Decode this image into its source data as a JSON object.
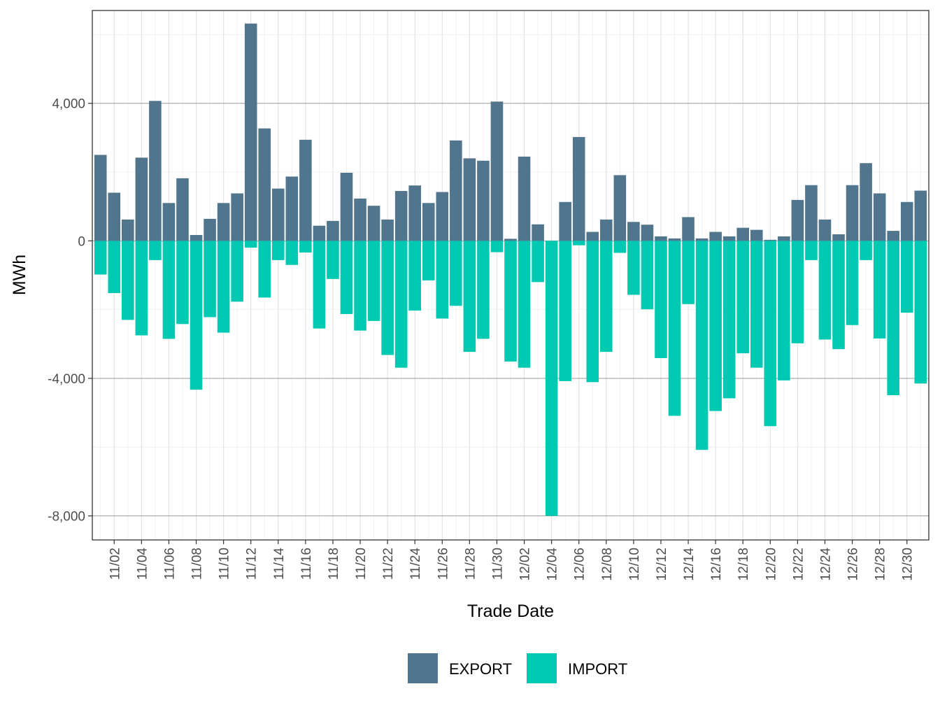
{
  "chart_data": {
    "type": "bar",
    "stacked": true,
    "xlabel": "Trade Date",
    "ylabel": "MWh",
    "ylim": [
      -8700,
      6700
    ],
    "yticks": [
      4000,
      0,
      -4000,
      -8000
    ],
    "ytick_labels": [
      "4,000",
      "0",
      "-4,000",
      "-8,000"
    ],
    "categories": [
      "11/01",
      "11/02",
      "11/03",
      "11/04",
      "11/05",
      "11/06",
      "11/07",
      "11/08",
      "11/09",
      "11/10",
      "11/11",
      "11/12",
      "11/13",
      "11/14",
      "11/15",
      "11/16",
      "11/17",
      "11/18",
      "11/19",
      "11/20",
      "11/21",
      "11/22",
      "11/23",
      "11/24",
      "11/25",
      "11/26",
      "11/27",
      "11/28",
      "11/29",
      "11/30",
      "12/01",
      "12/02",
      "12/03",
      "12/04",
      "12/05",
      "12/06",
      "12/07",
      "12/08",
      "12/09",
      "12/10",
      "12/11",
      "12/12",
      "12/13",
      "12/14",
      "12/15",
      "12/16",
      "12/17",
      "12/18",
      "12/19",
      "12/20",
      "12/21",
      "12/22",
      "12/23",
      "12/24",
      "12/25",
      "12/26",
      "12/27",
      "12/28",
      "12/29",
      "12/30",
      "12/31"
    ],
    "xtick_labels": [
      "11/02",
      "11/04",
      "11/06",
      "11/08",
      "11/10",
      "11/12",
      "11/14",
      "11/16",
      "11/18",
      "11/20",
      "11/22",
      "11/24",
      "11/26",
      "11/28",
      "11/30",
      "12/02",
      "12/04",
      "12/06",
      "12/08",
      "12/10",
      "12/12",
      "12/14",
      "12/16",
      "12/18",
      "12/20",
      "12/22",
      "12/24",
      "12/26",
      "12/28",
      "12/30"
    ],
    "series": [
      {
        "name": "EXPORT",
        "color": "#51758c",
        "values": [
          2500,
          1400,
          620,
          2420,
          4070,
          1100,
          1820,
          170,
          640,
          1100,
          1380,
          6320,
          3270,
          1520,
          1870,
          2940,
          440,
          580,
          1980,
          1230,
          1020,
          620,
          1450,
          1610,
          1100,
          1420,
          2920,
          2400,
          2330,
          4050,
          60,
          2450,
          480,
          0,
          1130,
          3020,
          260,
          620,
          1910,
          550,
          470,
          130,
          70,
          690,
          70,
          260,
          130,
          380,
          320,
          30,
          130,
          1190,
          1620,
          620,
          190,
          1620,
          2260,
          1380,
          290,
          1130,
          1460
        ]
      },
      {
        "name": "IMPORT",
        "color": "#00c9b1",
        "values": [
          -980,
          -1520,
          -2300,
          -2750,
          -560,
          -2850,
          -2420,
          -4330,
          -2220,
          -2670,
          -1770,
          -200,
          -1650,
          -560,
          -700,
          -340,
          -2550,
          -1110,
          -2130,
          -2610,
          -2330,
          -3320,
          -3690,
          -2030,
          -1150,
          -2260,
          -1890,
          -3230,
          -2850,
          -330,
          -3510,
          -3690,
          -1200,
          -8000,
          -4080,
          -130,
          -4110,
          -3230,
          -350,
          -1570,
          -1990,
          -3410,
          -5090,
          -1840,
          -6080,
          -4950,
          -4580,
          -3270,
          -3690,
          -5390,
          -4060,
          -2980,
          -560,
          -2870,
          -3150,
          -2450,
          -560,
          -2840,
          -4490,
          -2090,
          -4150
        ]
      }
    ],
    "legend": {
      "position": "bottom",
      "entries": [
        "EXPORT",
        "IMPORT"
      ]
    },
    "grid": true,
    "colors": {
      "panel_border": "#333333",
      "major_grid_y": "#999999",
      "minor_grid": "#ebebeb",
      "tick_text": "#4d4d4d"
    }
  }
}
